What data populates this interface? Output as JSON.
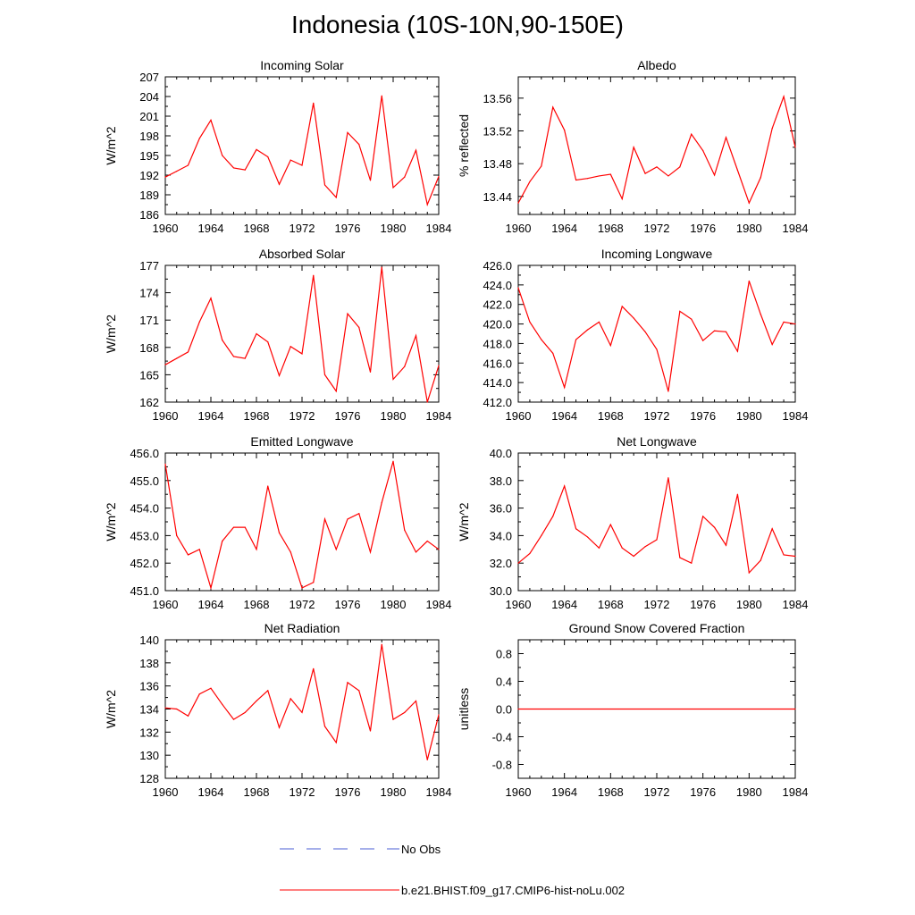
{
  "title": "Indonesia (10S-10N,90-150E)",
  "colors": {
    "model": "#ff0000",
    "obs": "#4b5fd6",
    "axis": "#000000"
  },
  "legend": {
    "obs_label": "No Obs",
    "model_label": "b.e21.BHIST.f09_g17.CMIP6-hist-noLu.002"
  },
  "chart_data": [
    {
      "type": "line",
      "title": "Incoming Solar",
      "ylabel": "W/m^2",
      "xlim": [
        1960,
        1984
      ],
      "ylim": [
        186,
        207
      ],
      "xticks": [
        1960,
        1964,
        1968,
        1972,
        1976,
        1980,
        1984
      ],
      "xtick_labels": [
        "1960",
        "1964",
        "1968",
        "1972",
        "1976",
        "1980",
        "1984"
      ],
      "yticks": [
        186,
        189,
        192,
        195,
        198,
        201,
        204,
        207
      ],
      "ytick_labels": [
        "186",
        "189",
        "192",
        "195",
        "198",
        "201",
        "204",
        "207"
      ],
      "x": [
        1960,
        1961,
        1962,
        1963,
        1964,
        1965,
        1966,
        1967,
        1968,
        1969,
        1970,
        1971,
        1972,
        1973,
        1974,
        1975,
        1976,
        1977,
        1978,
        1979,
        1980,
        1981,
        1982,
        1983,
        1984
      ],
      "values": [
        191.7,
        192.6,
        193.5,
        197.6,
        200.4,
        195.0,
        193.1,
        192.8,
        195.9,
        194.8,
        190.6,
        194.3,
        193.5,
        203.0,
        190.5,
        188.6,
        198.5,
        196.7,
        191.2,
        204.1,
        190.1,
        191.7,
        195.8,
        187.5,
        191.8
      ]
    },
    {
      "type": "line",
      "title": "Albedo",
      "ylabel": "% reflected",
      "xlim": [
        1960,
        1984
      ],
      "ylim": [
        13.418,
        13.586
      ],
      "xticks": [
        1960,
        1964,
        1968,
        1972,
        1976,
        1980,
        1984
      ],
      "xtick_labels": [
        "1960",
        "1964",
        "1968",
        "1972",
        "1976",
        "1980",
        "1984"
      ],
      "yticks": [
        13.44,
        13.48,
        13.52,
        13.56
      ],
      "ytick_labels": [
        "13.44",
        "13.48",
        "13.52",
        "13.56"
      ],
      "x": [
        1960,
        1961,
        1962,
        1963,
        1964,
        1965,
        1966,
        1967,
        1968,
        1969,
        1970,
        1971,
        1972,
        1973,
        1974,
        1975,
        1976,
        1977,
        1978,
        1979,
        1980,
        1981,
        1982,
        1983,
        1984
      ],
      "values": [
        13.432,
        13.458,
        13.477,
        13.549,
        13.521,
        13.46,
        13.462,
        13.465,
        13.467,
        13.437,
        13.5,
        13.468,
        13.476,
        13.465,
        13.476,
        13.516,
        13.496,
        13.466,
        13.512,
        13.472,
        13.432,
        13.463,
        13.523,
        13.562,
        13.5
      ]
    },
    {
      "type": "line",
      "title": "Absorbed Solar",
      "ylabel": "W/m^2",
      "xlim": [
        1960,
        1984
      ],
      "ylim": [
        162,
        177
      ],
      "xticks": [
        1960,
        1964,
        1968,
        1972,
        1976,
        1980,
        1984
      ],
      "xtick_labels": [
        "1960",
        "1964",
        "1968",
        "1972",
        "1976",
        "1980",
        "1984"
      ],
      "yticks": [
        162,
        165,
        168,
        171,
        174,
        177
      ],
      "ytick_labels": [
        "162",
        "165",
        "168",
        "171",
        "174",
        "177"
      ],
      "x": [
        1960,
        1961,
        1962,
        1963,
        1964,
        1965,
        1966,
        1967,
        1968,
        1969,
        1970,
        1971,
        1972,
        1973,
        1974,
        1975,
        1976,
        1977,
        1978,
        1979,
        1980,
        1981,
        1982,
        1983,
        1984
      ],
      "values": [
        166.1,
        166.8,
        167.5,
        170.8,
        173.4,
        168.8,
        167.0,
        166.8,
        169.5,
        168.6,
        164.9,
        168.1,
        167.3,
        175.9,
        165.0,
        163.2,
        171.7,
        170.2,
        165.3,
        176.8,
        164.5,
        165.9,
        169.3,
        162.0,
        166.0
      ]
    },
    {
      "type": "line",
      "title": "Incoming Longwave",
      "ylabel": "",
      "xlim": [
        1960,
        1984
      ],
      "ylim": [
        412,
        426
      ],
      "xticks": [
        1960,
        1964,
        1968,
        1972,
        1976,
        1980,
        1984
      ],
      "xtick_labels": [
        "1960",
        "1964",
        "1968",
        "1972",
        "1976",
        "1980",
        "1984"
      ],
      "yticks": [
        412,
        414,
        416,
        418,
        420,
        422,
        424,
        426
      ],
      "ytick_labels": [
        "412.0",
        "414.0",
        "416.0",
        "418.0",
        "420.0",
        "422.0",
        "424.0",
        "426.0"
      ],
      "x": [
        1960,
        1961,
        1962,
        1963,
        1964,
        1965,
        1966,
        1967,
        1968,
        1969,
        1970,
        1971,
        1972,
        1973,
        1974,
        1975,
        1976,
        1977,
        1978,
        1979,
        1980,
        1981,
        1982,
        1983,
        1984
      ],
      "values": [
        423.7,
        420.2,
        418.4,
        417.0,
        413.5,
        418.4,
        419.4,
        420.2,
        417.8,
        421.8,
        420.6,
        419.2,
        417.4,
        413.1,
        421.3,
        420.5,
        418.3,
        419.3,
        419.2,
        417.2,
        424.4,
        421.0,
        417.9,
        420.2,
        420.0
      ]
    },
    {
      "type": "line",
      "title": "Emitted Longwave",
      "ylabel": "W/m^2",
      "xlim": [
        1960,
        1984
      ],
      "ylim": [
        451,
        456
      ],
      "xticks": [
        1960,
        1964,
        1968,
        1972,
        1976,
        1980,
        1984
      ],
      "xtick_labels": [
        "1960",
        "1964",
        "1968",
        "1972",
        "1976",
        "1980",
        "1984"
      ],
      "yticks": [
        451,
        452,
        453,
        454,
        455,
        456
      ],
      "ytick_labels": [
        "451.0",
        "452.0",
        "453.0",
        "454.0",
        "455.0",
        "456.0"
      ],
      "x": [
        1960,
        1961,
        1962,
        1963,
        1964,
        1965,
        1966,
        1967,
        1968,
        1969,
        1970,
        1971,
        1972,
        1973,
        1974,
        1975,
        1976,
        1977,
        1978,
        1979,
        1980,
        1981,
        1982,
        1983,
        1984
      ],
      "values": [
        455.6,
        453.0,
        452.3,
        452.5,
        451.1,
        452.8,
        453.3,
        453.3,
        452.5,
        454.8,
        453.1,
        452.4,
        451.1,
        451.3,
        453.6,
        452.5,
        453.6,
        453.8,
        452.4,
        454.2,
        455.7,
        453.2,
        452.4,
        452.8,
        452.5
      ]
    },
    {
      "type": "line",
      "title": "Net Longwave",
      "ylabel": "W/m^2",
      "xlim": [
        1960,
        1984
      ],
      "ylim": [
        30,
        40
      ],
      "xticks": [
        1960,
        1964,
        1968,
        1972,
        1976,
        1980,
        1984
      ],
      "xtick_labels": [
        "1960",
        "1964",
        "1968",
        "1972",
        "1976",
        "1980",
        "1984"
      ],
      "yticks": [
        30,
        32,
        34,
        36,
        38,
        40
      ],
      "ytick_labels": [
        "30.0",
        "32.0",
        "34.0",
        "36.0",
        "38.0",
        "40.0"
      ],
      "x": [
        1960,
        1961,
        1962,
        1963,
        1964,
        1965,
        1966,
        1967,
        1968,
        1969,
        1970,
        1971,
        1972,
        1973,
        1974,
        1975,
        1976,
        1977,
        1978,
        1979,
        1980,
        1981,
        1982,
        1983,
        1984
      ],
      "values": [
        32.0,
        32.7,
        34.0,
        35.4,
        37.6,
        34.5,
        33.9,
        33.1,
        34.8,
        33.1,
        32.5,
        33.2,
        33.7,
        38.2,
        32.4,
        32.0,
        35.4,
        34.6,
        33.3,
        37.0,
        31.3,
        32.2,
        34.5,
        32.6,
        32.5
      ]
    },
    {
      "type": "line",
      "title": "Net Radiation",
      "ylabel": "W/m^2",
      "xlim": [
        1960,
        1984
      ],
      "ylim": [
        128,
        140
      ],
      "xticks": [
        1960,
        1964,
        1968,
        1972,
        1976,
        1980,
        1984
      ],
      "xtick_labels": [
        "1960",
        "1964",
        "1968",
        "1972",
        "1976",
        "1980",
        "1984"
      ],
      "yticks": [
        128,
        130,
        132,
        134,
        136,
        138,
        140
      ],
      "ytick_labels": [
        "128",
        "130",
        "132",
        "134",
        "136",
        "138",
        "140"
      ],
      "x": [
        1960,
        1961,
        1962,
        1963,
        1964,
        1965,
        1966,
        1967,
        1968,
        1969,
        1970,
        1971,
        1972,
        1973,
        1974,
        1975,
        1976,
        1977,
        1978,
        1979,
        1980,
        1981,
        1982,
        1983,
        1984
      ],
      "values": [
        134.1,
        134.0,
        133.4,
        135.3,
        135.8,
        134.4,
        133.1,
        133.7,
        134.7,
        135.6,
        132.4,
        134.9,
        133.7,
        137.5,
        132.5,
        131.1,
        136.3,
        135.6,
        132.1,
        139.6,
        133.1,
        133.7,
        134.7,
        129.6,
        133.5
      ]
    },
    {
      "type": "line",
      "title": "Ground Snow Covered Fraction",
      "ylabel": "unitless",
      "xlim": [
        1960,
        1984
      ],
      "ylim": [
        -1.0,
        1.0
      ],
      "xticks": [
        1960,
        1964,
        1968,
        1972,
        1976,
        1980,
        1984
      ],
      "xtick_labels": [
        "1960",
        "1964",
        "1968",
        "1972",
        "1976",
        "1980",
        "1984"
      ],
      "yticks": [
        -0.8,
        -0.4,
        0.0,
        0.4,
        0.8
      ],
      "ytick_labels": [
        "-0.8",
        "-0.4",
        "0.0",
        "0.4",
        "0.8"
      ],
      "x": [
        1960,
        1984
      ],
      "values": [
        0.0,
        0.0
      ]
    }
  ]
}
